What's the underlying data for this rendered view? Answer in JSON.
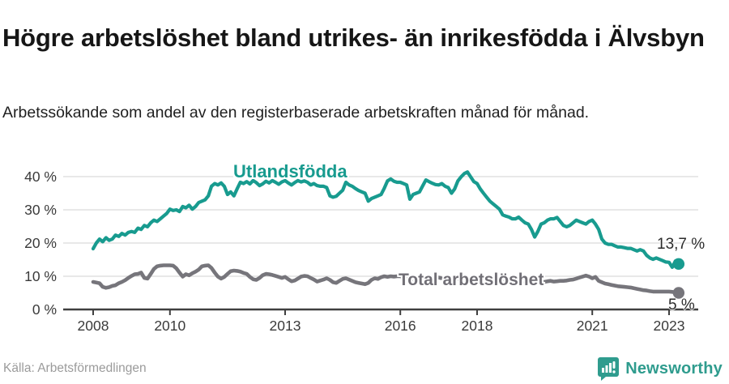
{
  "header": {
    "title": "Högre arbetslöshet bland utrikes- än inrikesfödda i Älvsbyn",
    "subtitle": "Arbetssökande som andel av den registerbaserade arbetskraften månad för månad."
  },
  "footer": {
    "source": "Källa: Arbetsförmedlingen",
    "brand": "Newsworthy"
  },
  "colors": {
    "series_foreign": "#189b8f",
    "series_total": "#76757b",
    "axis_line": "#3f3f3f",
    "grid_line": "#dadada",
    "tick_text": "#3a3a3a",
    "brand_teal": "#2f9c8e"
  },
  "chart_data": {
    "type": "line",
    "x_start": 2008.0,
    "x_step": 0.083333,
    "x_axis": {
      "ticks": [
        {
          "x": 2008,
          "label": "2008"
        },
        {
          "x": 2010,
          "label": "2010"
        },
        {
          "x": 2013,
          "label": "2013"
        },
        {
          "x": 2016,
          "label": "2016"
        },
        {
          "x": 2018,
          "label": "2018"
        },
        {
          "x": 2021,
          "label": "2021"
        },
        {
          "x": 2023,
          "label": "2023"
        }
      ]
    },
    "y_axis": {
      "min": 0,
      "max": 40,
      "unit": "%",
      "ticks": [
        {
          "y": 0,
          "label": "0 %"
        },
        {
          "y": 10,
          "label": "10 %"
        },
        {
          "y": 20,
          "label": "20 %"
        },
        {
          "y": 30,
          "label": "30 %"
        },
        {
          "y": 40,
          "label": "40 %"
        }
      ]
    },
    "grid": true,
    "legend_position": "inline-labels",
    "series": [
      {
        "name": "Utlandsfödda",
        "color": "#189b8f",
        "end_label": "13,7 %",
        "end_value": 13.7,
        "values": [
          18.3,
          20.0,
          21.2,
          20.4,
          21.6,
          20.8,
          21.2,
          22.4,
          22.0,
          22.9,
          22.4,
          23.2,
          23.5,
          23.2,
          24.5,
          24.1,
          25.3,
          24.9,
          26.1,
          26.9,
          26.5,
          27.3,
          28.1,
          28.9,
          30.2,
          29.8,
          30.0,
          29.5,
          31.0,
          30.6,
          31.4,
          30.2,
          31.0,
          32.2,
          32.6,
          33.0,
          34.2,
          37.1,
          37.9,
          37.5,
          38.1,
          37.1,
          34.6,
          35.4,
          34.2,
          36.3,
          38.3,
          37.9,
          38.5,
          37.8,
          38.8,
          38.2,
          37.3,
          37.8,
          38.6,
          38.1,
          38.8,
          38.3,
          37.7,
          38.4,
          38.8,
          38.1,
          37.5,
          38.2,
          38.8,
          38.4,
          38.7,
          38.3,
          37.5,
          37.9,
          37.3,
          37.1,
          37.1,
          36.7,
          34.2,
          33.8,
          34.1,
          35.0,
          35.9,
          38.3,
          37.5,
          37.1,
          36.4,
          35.8,
          35.4,
          35.0,
          32.6,
          33.4,
          33.8,
          34.2,
          34.6,
          36.5,
          38.7,
          39.3,
          38.6,
          38.3,
          38.3,
          37.9,
          37.5,
          33.2,
          34.6,
          35.0,
          35.4,
          37.2,
          39.0,
          38.5,
          38.0,
          37.6,
          37.5,
          37.9,
          37.1,
          36.7,
          35.0,
          36.3,
          38.7,
          39.9,
          40.9,
          41.4,
          39.9,
          38.5,
          37.9,
          36.3,
          35.0,
          33.8,
          32.6,
          31.8,
          31.0,
          30.2,
          28.5,
          28.1,
          27.8,
          27.3,
          27.3,
          27.8,
          26.9,
          26.1,
          25.7,
          24.1,
          21.8,
          23.5,
          25.7,
          26.1,
          26.9,
          27.3,
          27.3,
          27.7,
          26.5,
          25.3,
          24.9,
          25.3,
          26.1,
          26.9,
          26.5,
          26.1,
          25.7,
          26.5,
          26.9,
          25.7,
          24.1,
          21.2,
          20.0,
          19.6,
          19.6,
          19.2,
          18.8,
          18.8,
          18.6,
          18.4,
          18.4,
          18.0,
          17.6,
          18.0,
          17.6,
          16.3,
          15.5,
          15.1,
          15.5,
          15.1,
          14.7,
          14.3,
          14.2,
          12.7,
          14.6,
          13.7
        ]
      },
      {
        "name": "Total arbetslöshet",
        "color": "#76757b",
        "end_label": "5 %",
        "end_value": 5.0,
        "values": [
          8.3,
          8.1,
          7.9,
          6.8,
          6.5,
          6.7,
          7.1,
          7.3,
          7.9,
          8.3,
          8.8,
          9.5,
          10.1,
          10.6,
          10.7,
          11.1,
          9.5,
          9.3,
          10.7,
          12.2,
          13.0,
          13.2,
          13.3,
          13.3,
          13.3,
          13.2,
          12.4,
          11.1,
          9.9,
          10.6,
          10.3,
          10.9,
          11.4,
          12.0,
          13.0,
          13.2,
          13.3,
          12.5,
          11.1,
          9.9,
          9.3,
          9.8,
          10.7,
          11.5,
          11.7,
          11.6,
          11.4,
          11.0,
          10.7,
          9.8,
          9.1,
          8.9,
          9.5,
          10.3,
          10.7,
          10.6,
          10.4,
          10.1,
          9.8,
          9.5,
          9.8,
          9.1,
          8.5,
          8.7,
          9.3,
          9.9,
          10.1,
          10.0,
          9.5,
          9.0,
          8.4,
          8.7,
          9.0,
          9.4,
          8.9,
          8.2,
          8.0,
          8.6,
          9.2,
          9.4,
          9.0,
          8.6,
          8.2,
          8.0,
          7.8,
          7.6,
          8.0,
          8.9,
          9.4,
          9.2,
          9.7,
          10.0,
          9.8,
          10.0,
          9.9,
          10.0,
          10.0,
          9.7,
          9.8,
          8.9,
          8.4,
          8.7,
          9.2,
          9.5,
          9.7,
          9.5,
          9.3,
          9.5,
          9.6,
          9.4,
          9.2,
          9.0,
          8.8,
          9.0,
          9.3,
          9.5,
          9.4,
          9.2,
          9.0,
          9.2,
          9.3,
          9.1,
          8.9,
          8.7,
          8.5,
          8.4,
          8.6,
          8.8,
          8.7,
          8.5,
          8.3,
          8.4,
          8.5,
          8.7,
          8.5,
          8.3,
          8.1,
          7.9,
          7.7,
          7.9,
          8.1,
          8.3,
          8.5,
          8.6,
          8.4,
          8.5,
          8.6,
          8.6,
          8.7,
          8.9,
          9.0,
          9.3,
          9.6,
          9.9,
          10.2,
          9.9,
          9.4,
          9.8,
          8.6,
          8.2,
          7.8,
          7.6,
          7.4,
          7.2,
          7.0,
          6.9,
          6.8,
          6.7,
          6.6,
          6.4,
          6.2,
          6.0,
          5.8,
          5.7,
          5.5,
          5.4,
          5.4,
          5.4,
          5.4,
          5.4,
          5.4,
          5.3,
          5.1,
          5.0
        ]
      }
    ]
  }
}
